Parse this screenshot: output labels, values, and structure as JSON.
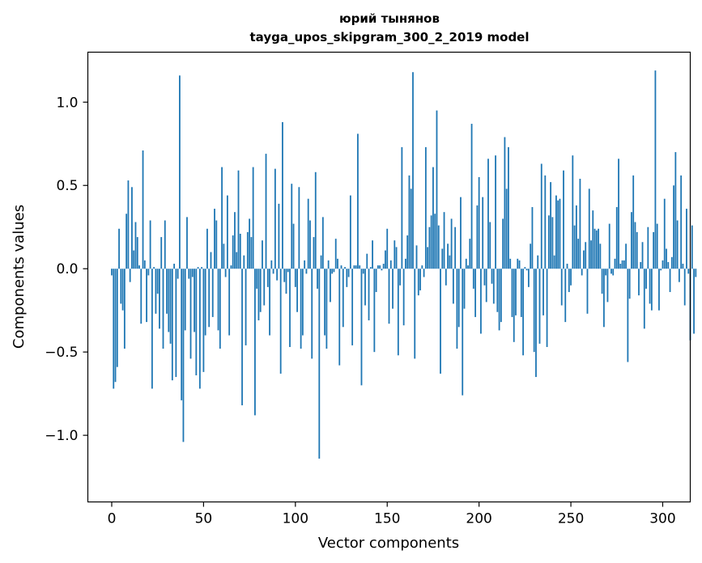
{
  "chart_data": {
    "type": "bar",
    "title": "юрий тынянов",
    "subtitle": "tayga_upos_skipgram_300_2_2019 model",
    "xlabel": "Vector components",
    "ylabel": "Components values",
    "xlim": [
      -13,
      315
    ],
    "ylim": [
      -1.4,
      1.3
    ],
    "xticks": [
      0,
      50,
      100,
      150,
      200,
      250,
      300
    ],
    "yticks": [
      -1.0,
      -0.5,
      0.0,
      0.5,
      1.0
    ],
    "ytick_labels": [
      "−1.0",
      "−0.5",
      "0.0",
      "0.5",
      "1.0"
    ],
    "bar_color": "#1f77b4",
    "values": [
      -0.04,
      -0.72,
      -0.68,
      -0.59,
      0.24,
      -0.21,
      -0.25,
      -0.48,
      0.33,
      0.53,
      -0.08,
      0.49,
      0.11,
      0.28,
      0.19,
      0.02,
      -0.33,
      0.71,
      0.05,
      -0.32,
      -0.04,
      0.29,
      -0.72,
      0.01,
      -0.27,
      -0.15,
      -0.36,
      0.19,
      -0.48,
      0.29,
      -0.27,
      -0.38,
      -0.45,
      -0.67,
      0.03,
      -0.65,
      -0.06,
      1.16,
      -0.79,
      -1.04,
      -0.37,
      0.31,
      -0.06,
      -0.54,
      -0.05,
      -0.38,
      -0.64,
      0.01,
      -0.72,
      0.01,
      -0.62,
      -0.4,
      0.24,
      -0.35,
      0.1,
      -0.29,
      0.36,
      0.29,
      -0.37,
      -0.48,
      0.61,
      0.15,
      -0.05,
      0.44,
      -0.4,
      0.02,
      0.2,
      0.34,
      0.1,
      0.59,
      0.21,
      -0.82,
      0.08,
      -0.46,
      0.22,
      0.3,
      0.19,
      0.61,
      -0.88,
      -0.12,
      -0.31,
      -0.26,
      0.17,
      -0.22,
      0.69,
      -0.11,
      -0.4,
      0.05,
      -0.03,
      0.6,
      -0.07,
      0.39,
      -0.63,
      0.88,
      -0.08,
      -0.15,
      -0.02,
      -0.47,
      0.51,
      0.27,
      -0.11,
      -0.26,
      0.49,
      -0.48,
      -0.4,
      0.05,
      -0.03,
      0.42,
      0.29,
      -0.54,
      0.19,
      0.58,
      -0.12,
      -1.14,
      0.08,
      0.31,
      -0.4,
      -0.48,
      0.05,
      -0.2,
      -0.03,
      -0.02,
      0.18,
      0.06,
      -0.58,
      0.02,
      -0.35,
      0.01,
      -0.11,
      -0.05,
      0.44,
      -0.46,
      0.02,
      0.02,
      0.81,
      0.02,
      -0.7,
      -0.03,
      -0.22,
      0.09,
      -0.31,
      0.01,
      0.17,
      -0.5,
      -0.14,
      0.02,
      0.02,
      -0.01,
      0.03,
      0.11,
      0.24,
      -0.33,
      0.05,
      -0.24,
      0.17,
      0.13,
      -0.52,
      -0.1,
      0.73,
      -0.34,
      0.06,
      0.2,
      0.56,
      0.48,
      1.18,
      -0.54,
      0.14,
      -0.16,
      -0.13,
      0.02,
      -0.05,
      0.73,
      0.13,
      0.25,
      0.32,
      0.61,
      0.33,
      0.95,
      0.26,
      -0.63,
      0.12,
      0.34,
      -0.1,
      0.15,
      0.08,
      0.3,
      -0.21,
      0.25,
      -0.48,
      -0.35,
      0.43,
      -0.76,
      -0.24,
      0.06,
      0.02,
      0.18,
      0.87,
      -0.12,
      -0.29,
      0.38,
      0.55,
      -0.39,
      0.43,
      -0.1,
      -0.2,
      0.66,
      0.28,
      -0.09,
      -0.21,
      0.68,
      -0.26,
      -0.37,
      -0.32,
      0.3,
      0.79,
      0.48,
      0.73,
      0.06,
      -0.29,
      -0.44,
      -0.28,
      0.06,
      0.05,
      -0.29,
      -0.52,
      0.01,
      -0.01,
      -0.11,
      0.15,
      0.37,
      -0.5,
      -0.65,
      0.08,
      -0.45,
      0.63,
      -0.28,
      0.56,
      -0.47,
      0.32,
      0.52,
      0.31,
      0.08,
      0.44,
      0.41,
      0.42,
      -0.22,
      0.59,
      -0.32,
      0.03,
      -0.14,
      -0.1,
      0.68,
      0.26,
      0.38,
      0.18,
      0.54,
      -0.04,
      0.11,
      0.16,
      -0.27,
      0.48,
      0.17,
      0.35,
      0.24,
      0.23,
      0.24,
      0.15,
      -0.15,
      -0.35,
      -0.04,
      -0.2,
      0.27,
      -0.03,
      -0.04,
      0.06,
      0.37,
      0.66,
      0.03,
      0.05,
      0.05,
      0.15,
      -0.56,
      -0.18,
      0.34,
      0.56,
      0.28,
      0.22,
      -0.16,
      0.04,
      0.16,
      -0.36,
      -0.12,
      0.25,
      -0.21,
      -0.25,
      0.22,
      1.19,
      0.27,
      -0.25,
      -0.01,
      0.05,
      0.42,
      0.12,
      0.04,
      -0.14,
      0.07,
      0.5,
      0.7,
      0.29,
      -0.08,
      0.56,
      0.03,
      -0.22,
      0.36,
      -0.03,
      -0.43,
      0.26,
      -0.39,
      -0.05
    ]
  }
}
